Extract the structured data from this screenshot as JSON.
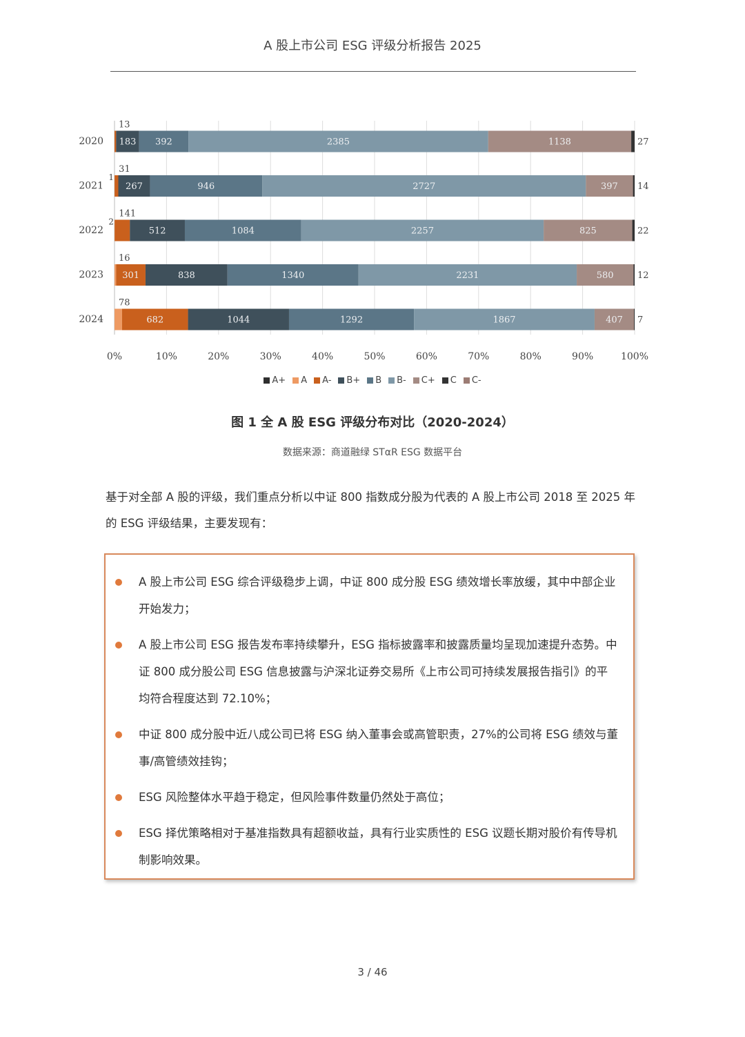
{
  "header": {
    "title": "A 股上市公司 ESG 评级分析报告 2025"
  },
  "chart_data": {
    "type": "stacked-bar-100",
    "orientation": "horizontal",
    "categories": [
      "2020",
      "2021",
      "2022",
      "2023",
      "2024"
    ],
    "series": [
      {
        "name": "A+",
        "color": "#2f2f2f",
        "values": [
          null,
          null,
          null,
          null,
          null
        ]
      },
      {
        "name": "A",
        "color": "#ee9a63",
        "values": [
          null,
          1,
          2,
          16,
          78
        ]
      },
      {
        "name": "A-",
        "color": "#c9601d",
        "values": [
          13,
          31,
          141,
          301,
          682
        ]
      },
      {
        "name": "B+",
        "color": "#3f505b",
        "values": [
          183,
          267,
          512,
          838,
          1044
        ]
      },
      {
        "name": "B",
        "color": "#5b7687",
        "values": [
          392,
          946,
          1084,
          1340,
          1292
        ]
      },
      {
        "name": "B-",
        "color": "#7f98a7",
        "values": [
          2385,
          2727,
          2257,
          2231,
          1867
        ]
      },
      {
        "name": "C+",
        "color": "#a48b84",
        "values": [
          1138,
          397,
          825,
          580,
          407
        ]
      },
      {
        "name": "C",
        "color": "#333333",
        "values": [
          27,
          14,
          22,
          12,
          7
        ]
      },
      {
        "name": "C-",
        "color": "#9c7c74",
        "values": [
          null,
          null,
          null,
          null,
          null
        ]
      }
    ],
    "xlim": [
      0,
      100
    ],
    "xticks": [
      {
        "value": 0,
        "label": "0%"
      },
      {
        "value": 10,
        "label": "10%"
      },
      {
        "value": 20,
        "label": "20%"
      },
      {
        "value": 30,
        "label": "30%"
      },
      {
        "value": 40,
        "label": "40%"
      },
      {
        "value": 50,
        "label": "50%"
      },
      {
        "value": 60,
        "label": "60%"
      },
      {
        "value": 70,
        "label": "70%"
      },
      {
        "value": 80,
        "label": "80%"
      },
      {
        "value": 90,
        "label": "90%"
      },
      {
        "value": 100,
        "label": "100%"
      }
    ],
    "grid": true,
    "legend": "bottom"
  },
  "figure": {
    "caption": "图 1 全 A 股 ESG 评级分布对比（2020-2024）",
    "source": "数据来源：商道融绿 STαR ESG 数据平台"
  },
  "paragraph": "基于对全部 A 股的评级，我们重点分析以中证 800 指数成分股为代表的 A 股上市公司 2018 至 2025 年的 ESG 评级结果，主要发现有：",
  "findings": [
    "A 股上市公司 ESG 综合评级稳步上调，中证 800 成分股 ESG 绩效增长率放缓，其中中部企业开始发力；",
    "A 股上市公司 ESG 报告发布率持续攀升，ESG 指标披露率和披露质量均呈现加速提升态势。中证 800 成分股公司 ESG 信息披露与沪深北证券交易所《上市公司可持续发展报告指引》的平均符合程度达到 72.10%；",
    "中证 800 成分股中近八成公司已将 ESG 纳入董事会或高管职责，27%的公司将 ESG 绩效与董事/高管绩效挂钩；",
    "ESG 风险整体水平趋于稳定，但风险事件数量仍然处于高位；",
    "ESG 择优策略相对于基准指数具有超额收益，具有行业实质性的 ESG 议题长期对股价有传导机制影响效果。"
  ],
  "page_number": "3 / 46"
}
